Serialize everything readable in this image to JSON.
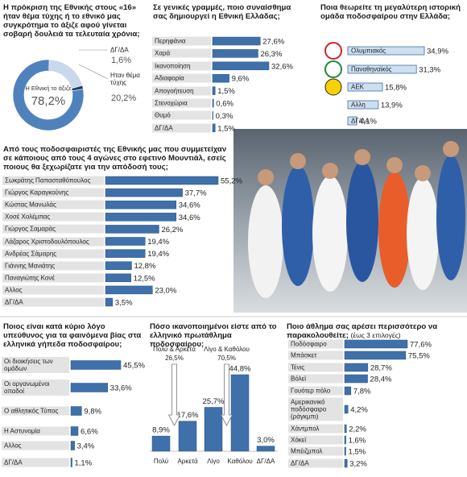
{
  "chart_data": [
    {
      "type": "pie",
      "title": "Η πρόκριση της Εθνικής στους «16» ήταν θέμα τύχης ή το εθνικό μας συγκρότημα το άξιζε αφού γίνεται σοβαρή δουλειά τα τελευταία χρόνια;",
      "categories": [
        "Η Εθνική το άξιζε",
        "Ηταν θέμα τύχης",
        "ΔΓ/ΔΑ"
      ],
      "values": [
        78.2,
        20.2,
        1.6
      ],
      "value_labels": [
        "78,2%",
        "20,2%",
        "1,6%"
      ],
      "colors": [
        "#4f82bd",
        "#c9d8ea",
        "#1f3f66"
      ]
    },
    {
      "type": "bar",
      "title": "Σε γενικές γραμμές, ποιο συναίσθημα σας δημιουργεί η Εθνική Ελλάδας;",
      "categories": [
        "Περηφάνια",
        "Χαρά",
        "Ικανοποίηση",
        "Αδιαφορία",
        "Απογοήτευση",
        "Στενοχώρια",
        "Θυμό",
        "ΔΓ/ΔΑ"
      ],
      "values": [
        27.6,
        26.3,
        32.6,
        9.6,
        1.5,
        0.6,
        0.3,
        1.5
      ],
      "value_labels": [
        "27,6%",
        "26,3%",
        "32,6%",
        "9,6%",
        "1,5%",
        "0,6%",
        "0,3%",
        "1,5%"
      ],
      "color": "#3f70a9"
    },
    {
      "type": "bar",
      "title": "Ποια θεωρείτε τη μεγαλύτερη ιστορική ομάδα ποδοσφαίρου στην Ελλάδα;",
      "categories": [
        "Ολυμπιακός",
        "Παναθηναϊκός",
        "ΑΕΚ",
        "Αλλη",
        "ΔΓ/ΔΑ"
      ],
      "values": [
        34.9,
        31.3,
        15.8,
        13.9,
        4.1
      ],
      "value_labels": [
        "34,9%",
        "31,3%",
        "15,8%",
        "13,9%",
        "4,1%"
      ],
      "color": "#cddff0"
    },
    {
      "type": "bar",
      "title": "Από τους ποδοσφαιριστές της Εθνικής μας που συμμετείχαν σε κάποιους από τους 4 αγώνες στο εφετινό Μουντιάλ, εσείς ποιους θα ξεχωρίζατε για την απόδοσή τους;",
      "categories": [
        "Σωκράτης Παπασταθόπουλος",
        "Γιώργος Καραγκούνης",
        "Κώστας Μανωλάς",
        "Χοσέ Χολέμπας",
        "Γιώργος Σαμαράς",
        "Λάζαρος Χριστοδουλόπουλος",
        "Ανδρέας Σάμαρης",
        "Γιάννης Μανιάτης",
        "Παναγιώτης Κονέ",
        "Αλλος",
        "ΔΓ/ΔΑ"
      ],
      "values": [
        55.2,
        37.7,
        34.6,
        34.6,
        26.2,
        19.4,
        19.4,
        12.8,
        12.5,
        23.0,
        3.5
      ],
      "value_labels": [
        "55,2%",
        "37,7%",
        "34,6%",
        "34,6%",
        "26,2%",
        "19,4%",
        "19,4%",
        "12,8%",
        "12,5%",
        "23,0%",
        "3,5%"
      ],
      "color": "#3f70a9"
    },
    {
      "type": "bar",
      "title": "Ποιος είναι κατά κύριο λόγο υπεύθυνος για τα φαινόμενα βίας στα ελληνικά γήπεδα ποδοσφαίρου;",
      "categories": [
        "Οι διοικήσεις των ομάδων",
        "Οι οργανωμένοι οπαδοί",
        "Ο αθλητικός Τύπος",
        "Η Αστυνομία",
        "Αλλος",
        "ΔΓ/ΔΑ"
      ],
      "values": [
        45.5,
        33.6,
        9.8,
        6.6,
        3.4,
        1.1
      ],
      "value_labels": [
        "45,5%",
        "33,6%",
        "9,8%",
        "6,6%",
        "3,4%",
        "1,1%"
      ],
      "color": "#3f70a9"
    },
    {
      "type": "column",
      "title": "Πόσο ικανοποιημένοι είστε από το ελληνικό πρωτάθλημα ποδοσφαίρου;",
      "categories": [
        "Πολύ",
        "Αρκετά",
        "Λίγο",
        "Καθόλου",
        "ΔΓ/ΔΑ"
      ],
      "values": [
        8.9,
        17.6,
        25.7,
        44.8,
        3.0
      ],
      "value_labels": [
        "8,9%",
        "17,6%",
        "25,7%",
        "44,8%",
        "3,0%"
      ],
      "color": "#3f70a9",
      "groups": [
        {
          "label": "Πολύ & Αρκετά",
          "value": 26.5,
          "value_label": "26,5%"
        },
        {
          "label": "Λίγο & Καθόλου",
          "value": 70.5,
          "value_label": "70,5%"
        }
      ]
    },
    {
      "type": "bar",
      "title": "Ποιο άθλημα σας αρέσει περισσότερο να παρακολουθείτε;",
      "subtitle": "(έως 3 επιλογές)",
      "categories": [
        "Ποδόσφαιρο",
        "Μπάσκετ",
        "Τένις",
        "Βόλεϊ",
        "Γουότερ πόλο",
        "Αμερικανικό ποδόσφαιρο (ράγκμπι)",
        "Χάντμπολ",
        "Χόκεϊ",
        "Μπέιζμπολ",
        "ΔΓ/ΔΑ"
      ],
      "values": [
        77.6,
        75.5,
        28.7,
        28.4,
        7.8,
        4.2,
        2.2,
        1.6,
        1.5,
        3.2
      ],
      "value_labels": [
        "77,6%",
        "75,5%",
        "28,7%",
        "28,4%",
        "7,8%",
        "4,2%",
        "2,2%",
        "1,6%",
        "1,5%",
        "3,2%"
      ],
      "color": "#3f70a9"
    }
  ]
}
